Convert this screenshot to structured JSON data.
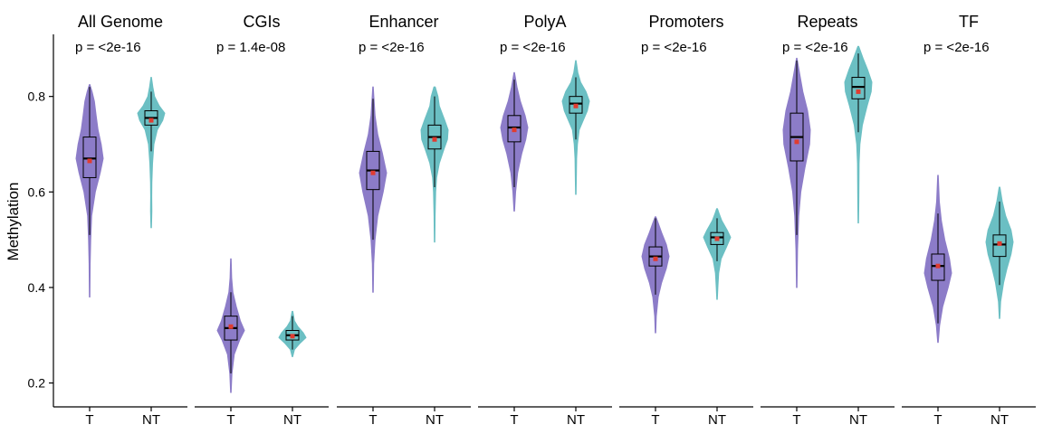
{
  "chart_data": {
    "type": "violin",
    "ylabel": "Methylation",
    "xlabel": "",
    "ylim": [
      0.15,
      0.93
    ],
    "y_ticks": [
      "0.2",
      "0.4",
      "0.6",
      "0.8"
    ],
    "groups": [
      "T",
      "NT"
    ],
    "colors": {
      "T": "#8C7CC8",
      "NT": "#6BBFC3",
      "mean_marker": "#E03C31",
      "box_stroke": "#000000"
    },
    "panels": [
      {
        "title": "All Genome",
        "pvalue": "p = <2e-16",
        "violins": [
          {
            "group": "T",
            "min": 0.38,
            "whisker_low": 0.51,
            "q1": 0.63,
            "median": 0.67,
            "q3": 0.715,
            "whisker_high": 0.82,
            "max": 0.825,
            "mean": 0.665,
            "density": [
              [
                0.38,
                0.02
              ],
              [
                0.45,
                0.04
              ],
              [
                0.5,
                0.08
              ],
              [
                0.55,
                0.15
              ],
              [
                0.6,
                0.42
              ],
              [
                0.64,
                0.78
              ],
              [
                0.67,
                1.0
              ],
              [
                0.7,
                0.85
              ],
              [
                0.73,
                0.62
              ],
              [
                0.76,
                0.48
              ],
              [
                0.79,
                0.35
              ],
              [
                0.81,
                0.18
              ],
              [
                0.825,
                0.02
              ]
            ]
          },
          {
            "group": "NT",
            "min": 0.525,
            "whisker_low": 0.685,
            "q1": 0.74,
            "median": 0.755,
            "q3": 0.77,
            "whisker_high": 0.81,
            "max": 0.84,
            "mean": 0.75,
            "density": [
              [
                0.525,
                0.02
              ],
              [
                0.56,
                0.05
              ],
              [
                0.59,
                0.04
              ],
              [
                0.62,
                0.05
              ],
              [
                0.66,
                0.1
              ],
              [
                0.7,
                0.2
              ],
              [
                0.73,
                0.45
              ],
              [
                0.75,
                0.85
              ],
              [
                0.765,
                1.0
              ],
              [
                0.78,
                0.6
              ],
              [
                0.8,
                0.25
              ],
              [
                0.82,
                0.12
              ],
              [
                0.84,
                0.02
              ]
            ]
          }
        ]
      },
      {
        "title": "CGIs",
        "pvalue": "p = 1.4e-08",
        "violins": [
          {
            "group": "T",
            "min": 0.18,
            "whisker_low": 0.22,
            "q1": 0.29,
            "median": 0.315,
            "q3": 0.34,
            "whisker_high": 0.39,
            "max": 0.46,
            "mean": 0.318,
            "density": [
              [
                0.18,
                0.02
              ],
              [
                0.22,
                0.08
              ],
              [
                0.26,
                0.25
              ],
              [
                0.29,
                0.65
              ],
              [
                0.31,
                1.0
              ],
              [
                0.33,
                0.7
              ],
              [
                0.36,
                0.4
              ],
              [
                0.39,
                0.15
              ],
              [
                0.42,
                0.06
              ],
              [
                0.46,
                0.02
              ]
            ]
          },
          {
            "group": "NT",
            "min": 0.255,
            "whisker_low": 0.27,
            "q1": 0.29,
            "median": 0.3,
            "q3": 0.31,
            "whisker_high": 0.34,
            "max": 0.35,
            "mean": 0.298,
            "density": [
              [
                0.255,
                0.02
              ],
              [
                0.27,
                0.15
              ],
              [
                0.283,
                0.55
              ],
              [
                0.295,
                1.0
              ],
              [
                0.305,
                0.8
              ],
              [
                0.318,
                0.4
              ],
              [
                0.33,
                0.15
              ],
              [
                0.35,
                0.03
              ]
            ]
          }
        ]
      },
      {
        "title": "Enhancer",
        "pvalue": "p = <2e-16",
        "violins": [
          {
            "group": "T",
            "min": 0.39,
            "whisker_low": 0.5,
            "q1": 0.605,
            "median": 0.645,
            "q3": 0.685,
            "whisker_high": 0.795,
            "max": 0.82,
            "mean": 0.64,
            "density": [
              [
                0.39,
                0.02
              ],
              [
                0.45,
                0.05
              ],
              [
                0.5,
                0.15
              ],
              [
                0.55,
                0.35
              ],
              [
                0.6,
                0.75
              ],
              [
                0.64,
                1.0
              ],
              [
                0.68,
                0.7
              ],
              [
                0.72,
                0.35
              ],
              [
                0.76,
                0.15
              ],
              [
                0.8,
                0.06
              ],
              [
                0.82,
                0.02
              ]
            ]
          },
          {
            "group": "NT",
            "min": 0.495,
            "whisker_low": 0.61,
            "q1": 0.69,
            "median": 0.715,
            "q3": 0.74,
            "whisker_high": 0.8,
            "max": 0.82,
            "mean": 0.71,
            "density": [
              [
                0.495,
                0.02
              ],
              [
                0.55,
                0.04
              ],
              [
                0.6,
                0.08
              ],
              [
                0.63,
                0.15
              ],
              [
                0.66,
                0.35
              ],
              [
                0.69,
                0.7
              ],
              [
                0.71,
                0.95
              ],
              [
                0.73,
                1.0
              ],
              [
                0.75,
                0.75
              ],
              [
                0.78,
                0.35
              ],
              [
                0.8,
                0.25
              ],
              [
                0.82,
                0.05
              ]
            ]
          }
        ]
      },
      {
        "title": "PolyA",
        "pvalue": "p = <2e-16",
        "violins": [
          {
            "group": "T",
            "min": 0.56,
            "whisker_low": 0.61,
            "q1": 0.705,
            "median": 0.735,
            "q3": 0.76,
            "whisker_high": 0.835,
            "max": 0.85,
            "mean": 0.73,
            "density": [
              [
                0.56,
                0.02
              ],
              [
                0.6,
                0.1
              ],
              [
                0.64,
                0.25
              ],
              [
                0.68,
                0.55
              ],
              [
                0.71,
                0.85
              ],
              [
                0.735,
                1.0
              ],
              [
                0.76,
                0.8
              ],
              [
                0.79,
                0.45
              ],
              [
                0.82,
                0.2
              ],
              [
                0.85,
                0.02
              ]
            ]
          },
          {
            "group": "NT",
            "min": 0.595,
            "whisker_low": 0.71,
            "q1": 0.765,
            "median": 0.785,
            "q3": 0.8,
            "whisker_high": 0.84,
            "max": 0.875,
            "mean": 0.78,
            "density": [
              [
                0.595,
                0.02
              ],
              [
                0.63,
                0.04
              ],
              [
                0.67,
                0.06
              ],
              [
                0.7,
                0.12
              ],
              [
                0.73,
                0.25
              ],
              [
                0.75,
                0.55
              ],
              [
                0.77,
                0.85
              ],
              [
                0.79,
                1.0
              ],
              [
                0.81,
                0.75
              ],
              [
                0.83,
                0.35
              ],
              [
                0.85,
                0.15
              ],
              [
                0.875,
                0.02
              ]
            ]
          }
        ]
      },
      {
        "title": "Promoters",
        "pvalue": "p = <2e-16",
        "violins": [
          {
            "group": "T",
            "min": 0.305,
            "whisker_low": 0.385,
            "q1": 0.445,
            "median": 0.465,
            "q3": 0.485,
            "whisker_high": 0.545,
            "max": 0.548,
            "mean": 0.46,
            "density": [
              [
                0.305,
                0.02
              ],
              [
                0.34,
                0.06
              ],
              [
                0.38,
                0.2
              ],
              [
                0.41,
                0.45
              ],
              [
                0.44,
                0.8
              ],
              [
                0.465,
                1.0
              ],
              [
                0.49,
                0.8
              ],
              [
                0.515,
                0.45
              ],
              [
                0.535,
                0.2
              ],
              [
                0.548,
                0.03
              ]
            ]
          },
          {
            "group": "NT",
            "min": 0.375,
            "whisker_low": 0.455,
            "q1": 0.49,
            "median": 0.505,
            "q3": 0.515,
            "whisker_high": 0.545,
            "max": 0.565,
            "mean": 0.502,
            "density": [
              [
                0.375,
                0.02
              ],
              [
                0.4,
                0.06
              ],
              [
                0.43,
                0.12
              ],
              [
                0.46,
                0.3
              ],
              [
                0.485,
                0.7
              ],
              [
                0.505,
                1.0
              ],
              [
                0.52,
                0.75
              ],
              [
                0.54,
                0.35
              ],
              [
                0.555,
                0.15
              ],
              [
                0.565,
                0.03
              ]
            ]
          }
        ]
      },
      {
        "title": "Repeats",
        "pvalue": "p = <2e-16",
        "violins": [
          {
            "group": "T",
            "min": 0.4,
            "whisker_low": 0.51,
            "q1": 0.665,
            "median": 0.715,
            "q3": 0.765,
            "whisker_high": 0.875,
            "max": 0.88,
            "mean": 0.705,
            "density": [
              [
                0.4,
                0.02
              ],
              [
                0.48,
                0.06
              ],
              [
                0.55,
                0.15
              ],
              [
                0.6,
                0.3
              ],
              [
                0.65,
                0.6
              ],
              [
                0.7,
                0.95
              ],
              [
                0.73,
                1.0
              ],
              [
                0.77,
                0.8
              ],
              [
                0.81,
                0.45
              ],
              [
                0.85,
                0.2
              ],
              [
                0.88,
                0.02
              ]
            ]
          },
          {
            "group": "NT",
            "min": 0.535,
            "whisker_low": 0.725,
            "q1": 0.795,
            "median": 0.82,
            "q3": 0.84,
            "whisker_high": 0.89,
            "max": 0.905,
            "mean": 0.81,
            "density": [
              [
                0.535,
                0.02
              ],
              [
                0.58,
                0.04
              ],
              [
                0.62,
                0.05
              ],
              [
                0.66,
                0.06
              ],
              [
                0.7,
                0.12
              ],
              [
                0.74,
                0.3
              ],
              [
                0.78,
                0.65
              ],
              [
                0.81,
                0.95
              ],
              [
                0.83,
                1.0
              ],
              [
                0.855,
                0.7
              ],
              [
                0.88,
                0.35
              ],
              [
                0.905,
                0.03
              ]
            ]
          }
        ]
      },
      {
        "title": "TF",
        "pvalue": "p = <2e-16",
        "violins": [
          {
            "group": "T",
            "min": 0.285,
            "whisker_low": 0.325,
            "q1": 0.415,
            "median": 0.445,
            "q3": 0.47,
            "whisker_high": 0.555,
            "max": 0.635,
            "mean": 0.445,
            "density": [
              [
                0.285,
                0.02
              ],
              [
                0.32,
                0.12
              ],
              [
                0.36,
                0.35
              ],
              [
                0.4,
                0.75
              ],
              [
                0.43,
                1.0
              ],
              [
                0.46,
                0.85
              ],
              [
                0.5,
                0.5
              ],
              [
                0.54,
                0.25
              ],
              [
                0.58,
                0.1
              ],
              [
                0.635,
                0.02
              ]
            ]
          },
          {
            "group": "NT",
            "min": 0.335,
            "whisker_low": 0.405,
            "q1": 0.465,
            "median": 0.49,
            "q3": 0.51,
            "whisker_high": 0.58,
            "max": 0.61,
            "mean": 0.492,
            "density": [
              [
                0.335,
                0.02
              ],
              [
                0.37,
                0.08
              ],
              [
                0.41,
                0.3
              ],
              [
                0.44,
                0.55
              ],
              [
                0.47,
                0.85
              ],
              [
                0.495,
                1.0
              ],
              [
                0.52,
                0.85
              ],
              [
                0.55,
                0.45
              ],
              [
                0.58,
                0.2
              ],
              [
                0.61,
                0.03
              ]
            ]
          }
        ]
      }
    ]
  }
}
